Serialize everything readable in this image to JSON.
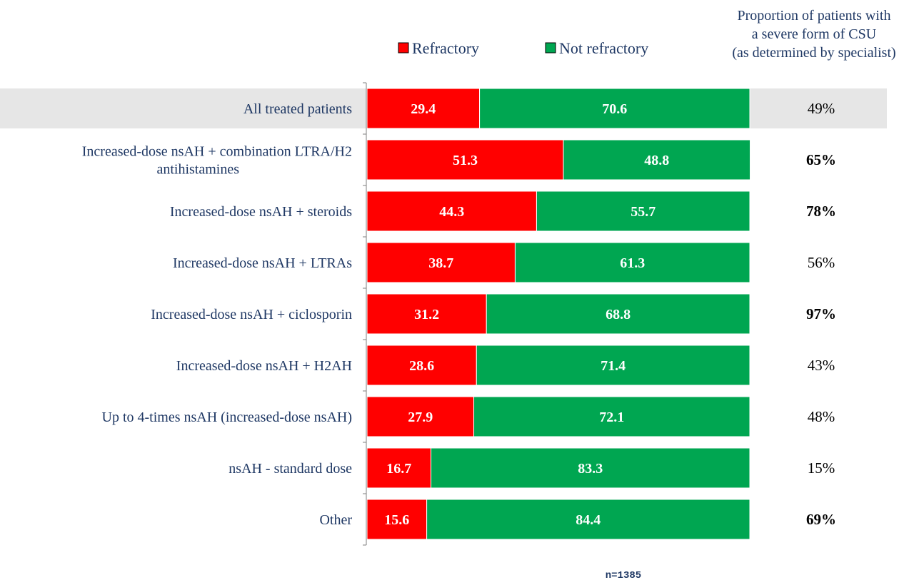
{
  "chart_data": {
    "type": "bar",
    "orientation": "horizontal",
    "stacked": true,
    "xlim": [
      0,
      100
    ],
    "categories": [
      "All treated patients",
      [
        "Increased-dose nsAH + combination LTRA/H2",
        "antihistamines"
      ],
      "Increased-dose nsAH + steroids",
      "Increased-dose nsAH + LTRAs",
      "Increased-dose nsAH + ciclosporin",
      "Increased-dose nsAH + H2AH",
      "Up to 4-times nsAH (increased-dose nsAH)",
      "nsAH - standard dose",
      "Other"
    ],
    "series": [
      {
        "name": "Refractory",
        "color": "#ff0000",
        "values": [
          29.4,
          51.3,
          44.3,
          38.7,
          31.2,
          28.6,
          27.9,
          16.7,
          15.6
        ],
        "labels": [
          "29.4",
          "51.3",
          "44.3",
          "38.7",
          "31.2",
          "28.6",
          "27.9",
          "16.7",
          "15.6"
        ]
      },
      {
        "name": "Not refractory",
        "color": "#00a651",
        "values": [
          70.6,
          48.8,
          55.7,
          61.3,
          68.8,
          71.4,
          72.1,
          83.3,
          84.4
        ],
        "labels": [
          "70.6",
          "48.8",
          "55.7",
          "61.3",
          "68.8",
          "71.4",
          "72.1",
          "83.3",
          "84.4"
        ]
      }
    ],
    "proportion_header": [
      "Proportion of patients with",
      "a severe form of CSU",
      "(as determined by specialist)"
    ],
    "proportions": [
      "49%",
      "65%",
      "78%",
      "56%",
      "97%",
      "43%",
      "48%",
      "15%",
      "69%"
    ],
    "proportions_bold": [
      false,
      true,
      true,
      false,
      true,
      false,
      false,
      false,
      true
    ],
    "highlight_row": 0,
    "highlight_color": "#e6e6e6",
    "legend_position": "top",
    "footnote": "n=1385"
  }
}
